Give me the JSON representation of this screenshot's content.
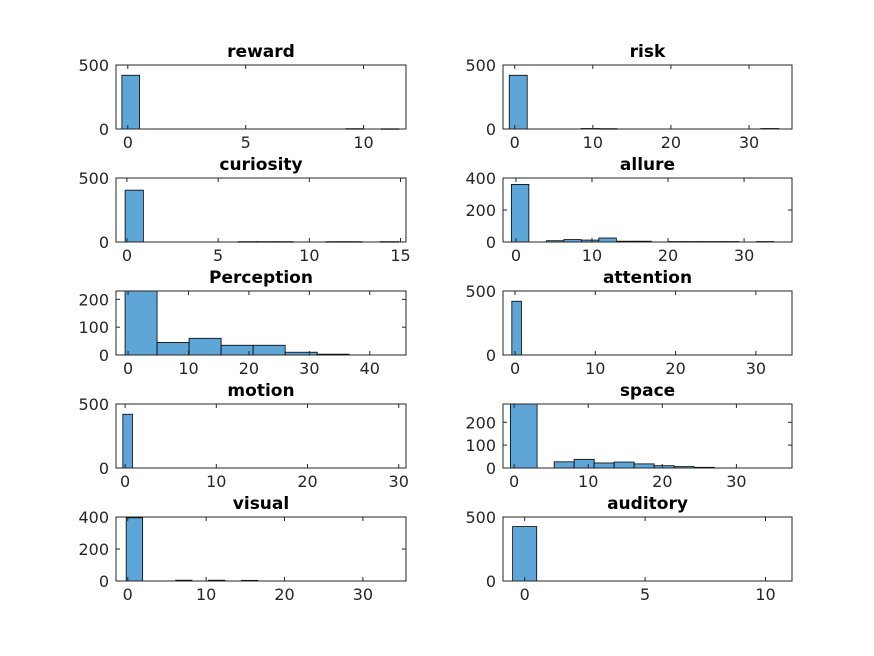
{
  "chart_data": [
    {
      "type": "bar",
      "title": "reward",
      "xlim": [
        -0.5,
        11.8
      ],
      "ylim": [
        0,
        500
      ],
      "xticks": [
        0,
        5,
        10
      ],
      "yticks": [
        0,
        500
      ],
      "bins": [
        {
          "x0": -0.25,
          "x1": 0.5,
          "value": 420
        },
        {
          "x0": 9.25,
          "x1": 10.0,
          "value": 3
        },
        {
          "x0": 10.75,
          "x1": 11.5,
          "value": 2
        }
      ]
    },
    {
      "type": "bar",
      "title": "risk",
      "xlim": [
        -1.5,
        35.5
      ],
      "ylim": [
        0,
        500
      ],
      "xticks": [
        0,
        10,
        20,
        30
      ],
      "yticks": [
        0,
        500
      ],
      "bins": [
        {
          "x0": -0.7,
          "x1": 1.6,
          "value": 420
        },
        {
          "x0": 8.5,
          "x1": 10.8,
          "value": 4
        },
        {
          "x0": 10.8,
          "x1": 13.1,
          "value": 3
        },
        {
          "x0": 31.5,
          "x1": 33.8,
          "value": 4
        }
      ]
    },
    {
      "type": "bar",
      "title": "curiosity",
      "xlim": [
        -0.6,
        15.3
      ],
      "ylim": [
        0,
        500
      ],
      "xticks": [
        0,
        5,
        10,
        15
      ],
      "yticks": [
        0,
        500
      ],
      "bins": [
        {
          "x0": -0.1,
          "x1": 0.9,
          "value": 405
        },
        {
          "x0": 6.1,
          "x1": 7.1,
          "value": 3
        },
        {
          "x0": 7.1,
          "x1": 8.1,
          "value": 3
        },
        {
          "x0": 8.1,
          "x1": 9.1,
          "value": 3
        },
        {
          "x0": 10.9,
          "x1": 11.9,
          "value": 3
        },
        {
          "x0": 11.9,
          "x1": 12.9,
          "value": 3
        },
        {
          "x0": 13.9,
          "x1": 14.9,
          "value": 3
        }
      ]
    },
    {
      "type": "bar",
      "title": "allure",
      "xlim": [
        -1.7,
        36.3
      ],
      "ylim": [
        0,
        400
      ],
      "xticks": [
        0,
        10,
        20,
        30
      ],
      "yticks": [
        0,
        200,
        400
      ],
      "bins": [
        {
          "x0": -0.6,
          "x1": 1.7,
          "value": 360
        },
        {
          "x0": 4.0,
          "x1": 6.3,
          "value": 8
        },
        {
          "x0": 6.3,
          "x1": 8.6,
          "value": 15
        },
        {
          "x0": 8.6,
          "x1": 10.9,
          "value": 12
        },
        {
          "x0": 10.9,
          "x1": 13.2,
          "value": 25
        },
        {
          "x0": 13.2,
          "x1": 15.5,
          "value": 5
        },
        {
          "x0": 15.5,
          "x1": 17.8,
          "value": 5
        },
        {
          "x0": 20.1,
          "x1": 22.4,
          "value": 3
        },
        {
          "x0": 22.4,
          "x1": 24.7,
          "value": 3
        },
        {
          "x0": 24.7,
          "x1": 27.0,
          "value": 3
        },
        {
          "x0": 27.0,
          "x1": 29.3,
          "value": 3
        },
        {
          "x0": 31.6,
          "x1": 33.9,
          "value": 3
        }
      ]
    },
    {
      "type": "bar",
      "title": "Perception",
      "xlim": [
        -2,
        46
      ],
      "ylim": [
        0,
        230
      ],
      "xticks": [
        0,
        10,
        20,
        30,
        40
      ],
      "yticks": [
        0,
        100,
        200
      ],
      "bins": [
        {
          "x0": -0.5,
          "x1": 4.8,
          "value": 230
        },
        {
          "x0": 4.8,
          "x1": 10.1,
          "value": 45
        },
        {
          "x0": 10.1,
          "x1": 15.4,
          "value": 60
        },
        {
          "x0": 15.4,
          "x1": 20.7,
          "value": 35
        },
        {
          "x0": 20.7,
          "x1": 26.0,
          "value": 35
        },
        {
          "x0": 26.0,
          "x1": 31.3,
          "value": 10
        },
        {
          "x0": 31.3,
          "x1": 36.6,
          "value": 3
        }
      ]
    },
    {
      "type": "bar",
      "title": "attention",
      "xlim": [
        -1.5,
        34.5
      ],
      "ylim": [
        0,
        500
      ],
      "xticks": [
        0,
        10,
        20,
        30
      ],
      "yticks": [
        0,
        500
      ],
      "bins": [
        {
          "x0": -0.4,
          "x1": 0.8,
          "value": 420
        }
      ]
    },
    {
      "type": "bar",
      "title": "motion",
      "xlim": [
        -1,
        30.8
      ],
      "ylim": [
        0,
        500
      ],
      "xticks": [
        0,
        10,
        20,
        30
      ],
      "yticks": [
        0,
        500
      ],
      "bins": [
        {
          "x0": -0.25,
          "x1": 0.8,
          "value": 420
        }
      ]
    },
    {
      "type": "bar",
      "title": "space",
      "xlim": [
        -1.5,
        37.5
      ],
      "ylim": [
        0,
        280
      ],
      "xticks": [
        0,
        10,
        20,
        30
      ],
      "yticks": [
        0,
        100,
        200
      ],
      "bins": [
        {
          "x0": -0.5,
          "x1": 3.1,
          "value": 280
        },
        {
          "x0": 5.4,
          "x1": 8.1,
          "value": 27
        },
        {
          "x0": 8.1,
          "x1": 10.8,
          "value": 38
        },
        {
          "x0": 10.8,
          "x1": 13.5,
          "value": 22
        },
        {
          "x0": 13.5,
          "x1": 16.2,
          "value": 26
        },
        {
          "x0": 16.2,
          "x1": 18.9,
          "value": 18
        },
        {
          "x0": 18.9,
          "x1": 21.6,
          "value": 10
        },
        {
          "x0": 21.6,
          "x1": 24.3,
          "value": 6
        },
        {
          "x0": 24.3,
          "x1": 27.0,
          "value": 3
        }
      ]
    },
    {
      "type": "bar",
      "title": "visual",
      "xlim": [
        -1.5,
        35.5
      ],
      "ylim": [
        0,
        400
      ],
      "xticks": [
        0,
        10,
        20,
        30
      ],
      "yticks": [
        0,
        200,
        400
      ],
      "bins": [
        {
          "x0": -0.2,
          "x1": 1.9,
          "value": 395
        },
        {
          "x0": 6.1,
          "x1": 8.2,
          "value": 5
        },
        {
          "x0": 10.3,
          "x1": 12.4,
          "value": 5
        },
        {
          "x0": 14.5,
          "x1": 16.6,
          "value": 4
        }
      ]
    },
    {
      "type": "bar",
      "title": "auditory",
      "xlim": [
        -0.9,
        11.1
      ],
      "ylim": [
        0,
        500
      ],
      "xticks": [
        0,
        5,
        10
      ],
      "yticks": [
        0,
        500
      ],
      "bins": [
        {
          "x0": -0.5,
          "x1": 0.5,
          "value": 425
        }
      ]
    }
  ],
  "colors": {
    "bar_fill": "#5fa6d8",
    "bar_edge": "#000000",
    "axis": "#262626"
  }
}
